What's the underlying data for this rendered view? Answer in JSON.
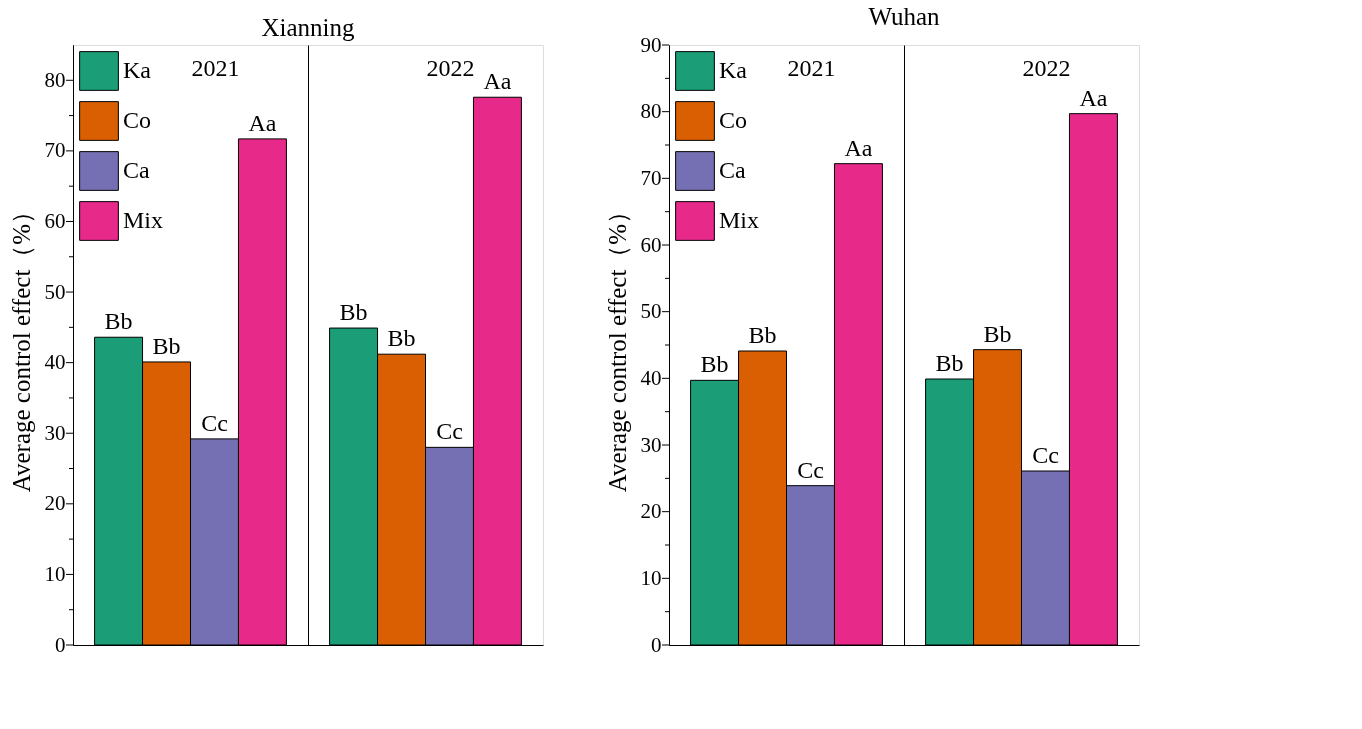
{
  "chart_data": [
    {
      "type": "bar",
      "title": "Xianning",
      "ylabel": "Average control effect（%）",
      "categories": [
        "2021",
        "2022"
      ],
      "ylim": [
        0,
        85
      ],
      "yticks": [
        0,
        {
          "value": 5,
          "label": null
        },
        10,
        {
          "value": 15,
          "label": null
        },
        20,
        {
          "value": 25,
          "label": null
        },
        30,
        {
          "value": 35,
          "label": null
        },
        40,
        {
          "value": 45,
          "label": null
        },
        50,
        {
          "value": 55,
          "label": null
        },
        60,
        {
          "value": 65,
          "label": null
        },
        70,
        {
          "value": 75,
          "label": null
        },
        80
      ],
      "grid": "x",
      "legend": "top left",
      "tick_labels": "y",
      "series": [
        {
          "name": "Ka",
          "color": "#1b9e77",
          "values": [
            43.6,
            44.9
          ],
          "value_labels": [
            "Bb",
            "Bb"
          ]
        },
        {
          "name": "Co",
          "color": "#d95f02",
          "values": [
            40.1,
            41.2
          ],
          "value_labels": [
            "Bb",
            "Bb"
          ]
        },
        {
          "name": "Ca",
          "color": "#7570b3",
          "values": [
            29.2,
            28.0
          ],
          "value_labels": [
            "Cc",
            "Cc"
          ]
        },
        {
          "name": "Mix",
          "color": "#e7298a",
          "values": [
            71.7,
            77.6
          ],
          "value_labels": [
            "Aa",
            "Aa"
          ]
        }
      ]
    },
    {
      "type": "bar",
      "title": "Wuhan",
      "ylabel": "Average control effect（%）",
      "categories": [
        "2021",
        "2022"
      ],
      "ylim": [
        0,
        90
      ],
      "yticks": [
        0,
        {
          "value": 5,
          "label": null
        },
        10,
        {
          "value": 15,
          "label": null
        },
        20,
        {
          "value": 25,
          "label": null
        },
        30,
        {
          "value": 35,
          "label": null
        },
        40,
        {
          "value": 45,
          "label": null
        },
        50,
        {
          "value": 55,
          "label": null
        },
        60,
        {
          "value": 65,
          "label": null
        },
        70,
        {
          "value": 75,
          "label": null
        },
        80,
        {
          "value": 85,
          "label": null
        },
        90
      ],
      "grid": "x",
      "legend": "top left",
      "tick_labels": "y",
      "series": [
        {
          "name": "Ka",
          "color": "#1b9e77",
          "values": [
            39.7,
            39.9
          ],
          "value_labels": [
            "Bb",
            "Bb"
          ]
        },
        {
          "name": "Co",
          "color": "#d95f02",
          "values": [
            44.1,
            44.3
          ],
          "value_labels": [
            "Bb",
            "Bb"
          ]
        },
        {
          "name": "Ca",
          "color": "#7570b3",
          "values": [
            23.9,
            26.1
          ],
          "value_labels": [
            "Cc",
            "Cc"
          ]
        },
        {
          "name": "Mix",
          "color": "#e7298a",
          "values": [
            72.2,
            79.7
          ],
          "value_labels": [
            "Aa",
            "Aa"
          ]
        }
      ]
    }
  ]
}
